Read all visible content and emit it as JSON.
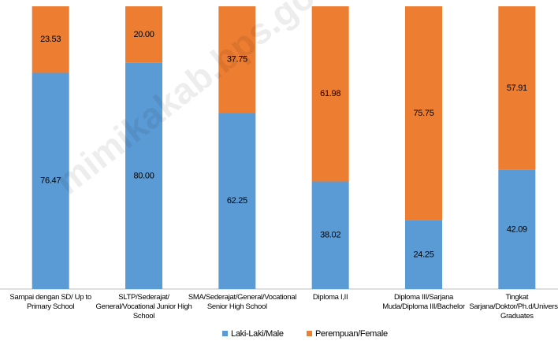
{
  "chart_data": {
    "type": "stacked_bar_100",
    "categories": [
      "Sampai dengan SD/ Up to Primary School",
      "SLTP/Sederajat/ General/Vocational Junior High School",
      "SMA/Sederajat/General/Vocational Senior High School",
      "Diploma I,II",
      "Diploma III/Sarjana Muda/Diploma III/Bachelor",
      "Tingkat Sarjana/Doktor/Ph.d/University Graduates"
    ],
    "series": [
      {
        "name": "Laki-Laki/Male",
        "color": "#5b9bd5",
        "values": [
          76.47,
          80.0,
          62.25,
          38.02,
          24.25,
          42.09
        ],
        "value_labels": [
          "76.47",
          "80.00",
          "62.25",
          "38.02",
          "24.25",
          "42.09"
        ]
      },
      {
        "name": "Perempuan/Female",
        "color": "#ed7d31",
        "values": [
          23.53,
          20.0,
          37.75,
          61.98,
          75.75,
          57.91
        ],
        "value_labels": [
          "23.53",
          "20.00",
          "37.75",
          "61.98",
          "75.75",
          "57.91"
        ]
      }
    ],
    "legend": "bottom",
    "watermark": "mimikakab.bps.go.id"
  }
}
